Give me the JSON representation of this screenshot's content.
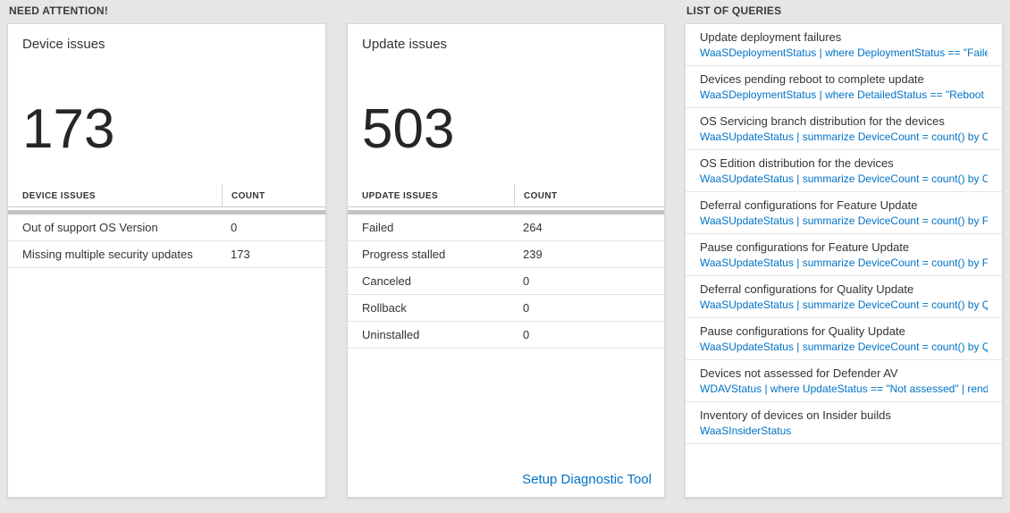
{
  "colors": {
    "accent_blue": "#0072c6",
    "page_background": "#e6e6e6",
    "card_background": "#ffffff"
  },
  "header": {
    "need_attention": "NEED ATTENTION!",
    "list_of_queries": "LIST OF QUERIES"
  },
  "device_issues": {
    "title": "Device issues",
    "count": "173",
    "table_headers": {
      "issue": "DEVICE ISSUES",
      "count": "COUNT"
    },
    "rows": [
      {
        "label": "Out of support OS Version",
        "count": "0"
      },
      {
        "label": "Missing multiple security updates",
        "count": "173"
      }
    ]
  },
  "update_issues": {
    "title": "Update issues",
    "count": "503",
    "table_headers": {
      "issue": "UPDATE ISSUES",
      "count": "COUNT"
    },
    "rows": [
      {
        "label": "Failed",
        "count": "264"
      },
      {
        "label": "Progress stalled",
        "count": "239"
      },
      {
        "label": "Canceled",
        "count": "0"
      },
      {
        "label": "Rollback",
        "count": "0"
      },
      {
        "label": "Uninstalled",
        "count": "0"
      }
    ],
    "footer_link": "Setup Diagnostic Tool"
  },
  "queries": {
    "items": [
      {
        "title": "Update deployment failures",
        "query": "WaaSDeploymentStatus | where DeploymentStatus == \"Failed\" |..."
      },
      {
        "title": "Devices pending reboot to complete update",
        "query": "WaaSDeploymentStatus | where DetailedStatus == \"Reboot pend..."
      },
      {
        "title": "OS Servicing branch distribution for the devices",
        "query": "WaaSUpdateStatus | summarize DeviceCount = count() by OSSer..."
      },
      {
        "title": "OS Edition distribution for the devices",
        "query": "WaaSUpdateStatus | summarize DeviceCount = count() by OSEdit..."
      },
      {
        "title": "Deferral configurations for Feature Update",
        "query": "WaaSUpdateStatus | summarize DeviceCount = count() by Featur..."
      },
      {
        "title": "Pause configurations for Feature Update",
        "query": "WaaSUpdateStatus | summarize DeviceCount = count() by Featur..."
      },
      {
        "title": "Deferral configurations for Quality Update",
        "query": "WaaSUpdateStatus | summarize DeviceCount = count() by Qualit..."
      },
      {
        "title": "Pause configurations for Quality Update",
        "query": "WaaSUpdateStatus | summarize DeviceCount = count() by Qualit..."
      },
      {
        "title": "Devices not assessed for Defender AV",
        "query": "WDAVStatus | where UpdateStatus == \"Not assessed\" | render ta..."
      },
      {
        "title": "Inventory of devices on Insider builds",
        "query": "WaaSInsiderStatus"
      }
    ]
  }
}
